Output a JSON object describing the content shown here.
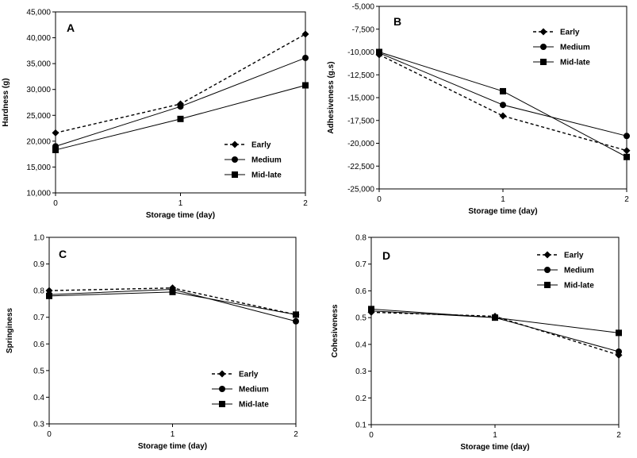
{
  "chart_data": [
    {
      "type": "line",
      "panel_label": "A",
      "x": [
        "0",
        "1",
        "2"
      ],
      "xlabel": "Storage time (day)",
      "ylabel": "Hardness (g)",
      "ylim": [
        10000,
        45000
      ],
      "yticks": [
        "10,000",
        "15,000",
        "20,000",
        "25,000",
        "30,000",
        "35,000",
        "40,000",
        "45,000"
      ],
      "legend_position": "bottom-right",
      "series": [
        {
          "name": "Early",
          "marker": "diamond",
          "dash": true,
          "values": [
            21600,
            27200,
            40700
          ]
        },
        {
          "name": "Medium",
          "marker": "circle",
          "dash": false,
          "values": [
            19000,
            26700,
            36100
          ]
        },
        {
          "name": "Mid-late",
          "marker": "square",
          "dash": false,
          "values": [
            18300,
            24300,
            30800
          ]
        }
      ]
    },
    {
      "type": "line",
      "panel_label": "B",
      "x": [
        "0",
        "1",
        "2"
      ],
      "xlabel": "Storage time (day)",
      "ylabel": "Adhesiveness (g.s)",
      "ylim": [
        -25000,
        -5000
      ],
      "yticks": [
        "-5,000",
        "-7,500",
        "-10,000",
        "-12,500",
        "-15,000",
        "-17,500",
        "-20,000",
        "-22,500",
        "-25,000"
      ],
      "legend_position": "top-right",
      "series": [
        {
          "name": "Early",
          "marker": "diamond",
          "dash": true,
          "values": [
            -10300,
            -17000,
            -20800
          ]
        },
        {
          "name": "Medium",
          "marker": "circle",
          "dash": false,
          "values": [
            -10100,
            -15800,
            -19200
          ]
        },
        {
          "name": "Mid-late",
          "marker": "square",
          "dash": false,
          "values": [
            -10000,
            -14300,
            -21500
          ]
        }
      ]
    },
    {
      "type": "line",
      "panel_label": "C",
      "x": [
        "0",
        "1",
        "2"
      ],
      "xlabel": "Storage time (day)",
      "ylabel": "Springiness",
      "ylim": [
        0.3,
        1.0
      ],
      "yticks": [
        "1.0",
        "0.9",
        "0.8",
        "0.7",
        "0.6",
        "0.5",
        "0.4",
        "0.3"
      ],
      "legend_position": "bottom-right",
      "series": [
        {
          "name": "Early",
          "marker": "diamond",
          "dash": true,
          "values": [
            0.8,
            0.81,
            0.71
          ]
        },
        {
          "name": "Medium",
          "marker": "circle",
          "dash": false,
          "values": [
            0.785,
            0.805,
            0.685
          ]
        },
        {
          "name": "Mid-late",
          "marker": "square",
          "dash": false,
          "values": [
            0.78,
            0.795,
            0.71
          ]
        }
      ]
    },
    {
      "type": "line",
      "panel_label": "D",
      "x": [
        "0",
        "1",
        "2"
      ],
      "xlabel": "Storage time (day)",
      "ylabel": "Cohesiveness",
      "ylim": [
        0.1,
        0.8
      ],
      "yticks": [
        "0.8",
        "0.7",
        "0.6",
        "0.5",
        "0.4",
        "0.3",
        "0.2",
        "0.1"
      ],
      "legend_position": "top-right",
      "series": [
        {
          "name": "Early",
          "marker": "diamond",
          "dash": true,
          "values": [
            0.52,
            0.505,
            0.36
          ]
        },
        {
          "name": "Medium",
          "marker": "circle",
          "dash": false,
          "values": [
            0.525,
            0.5,
            0.373
          ]
        },
        {
          "name": "Mid-late",
          "marker": "square",
          "dash": false,
          "values": [
            0.532,
            0.5,
            0.443
          ]
        }
      ]
    }
  ]
}
